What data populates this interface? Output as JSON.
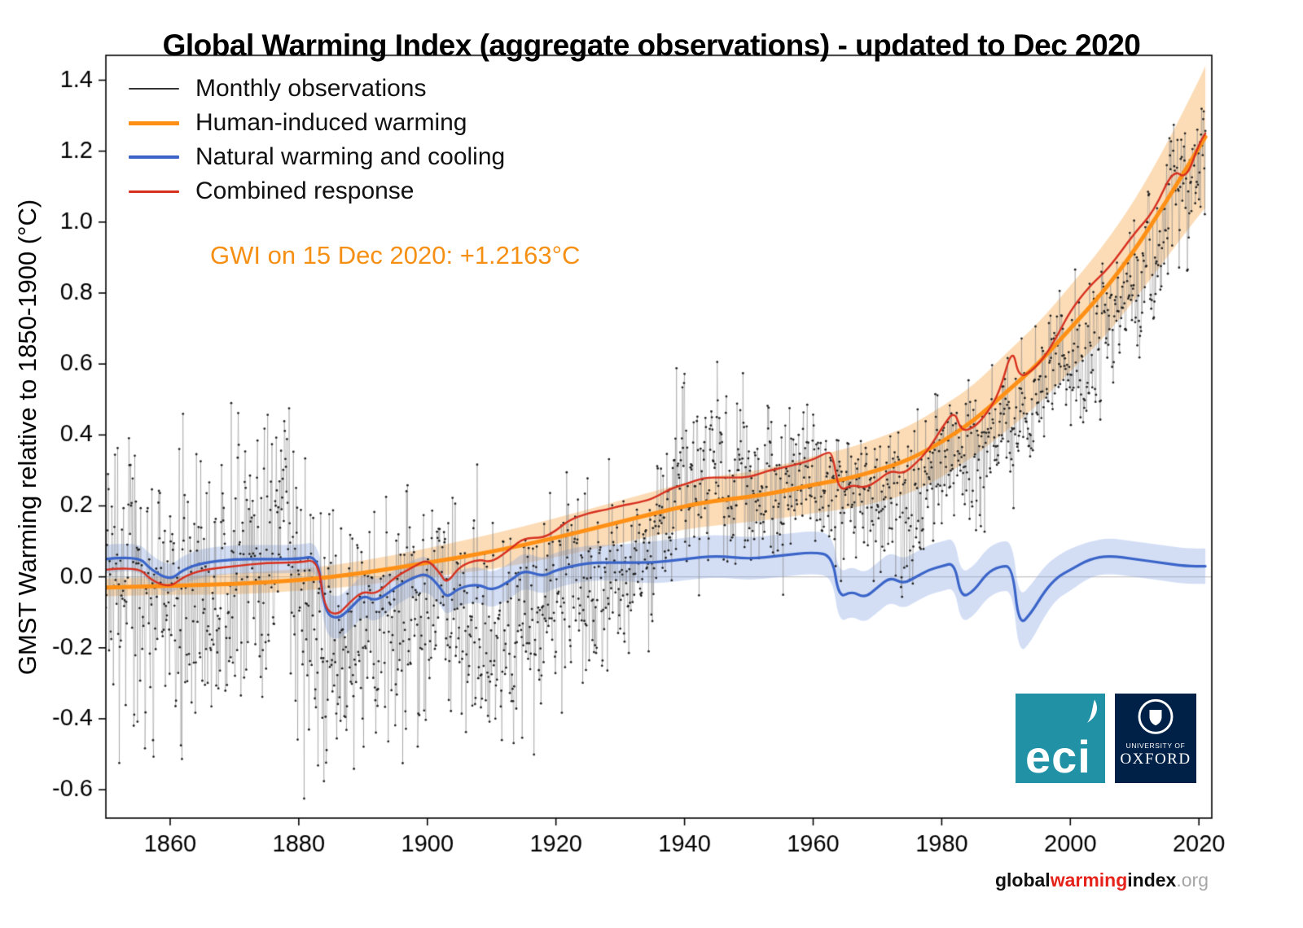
{
  "title": "Global Warming Index (aggregate observations) - updated to Dec 2020",
  "annotation": "GWI on 15 Dec 2020: +1.2163°C",
  "legend": [
    {
      "label": "Monthly observations",
      "color": "#333333"
    },
    {
      "label": "Human-induced warming",
      "color": "#ff9015"
    },
    {
      "label": "Natural warming and cooling",
      "color": "#3a64c8"
    },
    {
      "label": "Combined response",
      "color": "#d7301f"
    }
  ],
  "y_axis": {
    "label": "GMST Warming relative to 1850-1900 (°C)",
    "tick_values": [
      1.4,
      1.2,
      1.0,
      0.8,
      0.6,
      0.4,
      0.2,
      0.0,
      -0.2,
      -0.4,
      -0.6
    ],
    "tick_labels": [
      "1.4",
      "1.2",
      "1.0",
      "0.8",
      "0.6",
      "0.4",
      "0.2",
      "0.0",
      "-0.2",
      "-0.4",
      "-0.6"
    ]
  },
  "x_axis": {
    "tick_values": [
      1860,
      1880,
      1900,
      1920,
      1940,
      1960,
      1980,
      2000,
      2020
    ],
    "tick_labels": [
      "1860",
      "1880",
      "1900",
      "1920",
      "1940",
      "1960",
      "1980",
      "2000",
      "2020"
    ]
  },
  "colors": {
    "accent_orange": "#f59015",
    "footer_red": "#e5231b",
    "eci_teal": "#2191a5",
    "oxford_navy": "#002147",
    "zero_line": "#c4c4c4",
    "obs_dot": "#1c1c1c",
    "obs_line": "#8a8a8a",
    "orange_band": "rgba(247,164,64,0.38)",
    "blue_band": "rgba(130,160,225,0.35)"
  },
  "logos": {
    "eci_text": "eci",
    "oxford_line1": "UNIVERSITY OF",
    "oxford_line2": "OXFORD"
  },
  "footer": {
    "part1": "global",
    "part2": "warming",
    "part3": "index",
    "part4": ".org"
  },
  "chart_data": {
    "type": "line+scatter",
    "title": "Global Warming Index (aggregate observations) - updated to Dec 2020",
    "xlabel": "",
    "ylabel": "GMST Warming relative to 1850-1900 (°C)",
    "xlim": [
      1850,
      2022
    ],
    "ylim": [
      -0.68,
      1.47
    ],
    "grid": false,
    "zero_line": true,
    "legend_position": "top-left inside",
    "gwi_value_label": "+1.2163°C",
    "gwi_value": 1.2163,
    "gwi_date": "15 Dec 2020",
    "series": [
      {
        "name": "Human-induced warming",
        "kind": "line-with-band",
        "color": "#ff9015",
        "x": [
          1850,
          1860,
          1870,
          1880,
          1890,
          1900,
          1910,
          1920,
          1930,
          1940,
          1945,
          1950,
          1955,
          1960,
          1965,
          1970,
          1975,
          1980,
          1985,
          1990,
          1995,
          2000,
          2005,
          2010,
          2015,
          2020,
          2021
        ],
        "y": [
          -0.03,
          -0.025,
          -0.02,
          -0.01,
          0.01,
          0.04,
          0.07,
          0.11,
          0.155,
          0.2,
          0.215,
          0.225,
          0.24,
          0.26,
          0.275,
          0.3,
          0.33,
          0.38,
          0.44,
          0.52,
          0.6,
          0.7,
          0.8,
          0.92,
          1.06,
          1.21,
          1.24
        ],
        "band": [
          0.025,
          0.025,
          0.03,
          0.03,
          0.035,
          0.04,
          0.05,
          0.055,
          0.06,
          0.065,
          0.07,
          0.07,
          0.075,
          0.08,
          0.085,
          0.09,
          0.095,
          0.1,
          0.1,
          0.11,
          0.115,
          0.12,
          0.13,
          0.14,
          0.16,
          0.19,
          0.2
        ]
      },
      {
        "name": "Natural warming and cooling",
        "kind": "line-with-band",
        "color": "#3a64c8",
        "x": [
          1850,
          1855,
          1857,
          1860,
          1862,
          1865,
          1870,
          1875,
          1880,
          1883,
          1884,
          1886,
          1888,
          1890,
          1892,
          1895,
          1898,
          1900,
          1902,
          1903,
          1905,
          1908,
          1910,
          1913,
          1915,
          1918,
          1920,
          1925,
          1930,
          1935,
          1940,
          1945,
          1950,
          1955,
          1960,
          1963,
          1964,
          1966,
          1968,
          1970,
          1972,
          1974,
          1976,
          1978,
          1980,
          1982,
          1983,
          1985,
          1987,
          1989,
          1991,
          1992,
          1994,
          1996,
          1998,
          2000,
          2003,
          2006,
          2010,
          2014,
          2018,
          2021
        ],
        "y": [
          0.05,
          0.06,
          0.02,
          -0.01,
          0.02,
          0.04,
          0.05,
          0.05,
          0.05,
          0.06,
          -0.1,
          -0.12,
          -0.09,
          -0.05,
          -0.07,
          -0.03,
          0.0,
          0.01,
          -0.03,
          -0.06,
          -0.03,
          -0.02,
          -0.04,
          -0.01,
          0.02,
          0.0,
          0.02,
          0.04,
          0.04,
          0.04,
          0.05,
          0.06,
          0.05,
          0.06,
          0.07,
          0.06,
          -0.06,
          -0.04,
          -0.06,
          -0.03,
          0.0,
          -0.02,
          0.0,
          0.02,
          0.03,
          0.04,
          -0.06,
          -0.04,
          0.01,
          0.03,
          0.03,
          -0.14,
          -0.1,
          -0.04,
          0.0,
          0.02,
          0.05,
          0.06,
          0.05,
          0.04,
          0.03,
          0.03
        ],
        "band": [
          0.04,
          0.04,
          0.04,
          0.04,
          0.04,
          0.04,
          0.04,
          0.04,
          0.04,
          0.04,
          0.06,
          0.06,
          0.06,
          0.06,
          0.06,
          0.05,
          0.05,
          0.05,
          0.05,
          0.05,
          0.05,
          0.05,
          0.05,
          0.05,
          0.05,
          0.05,
          0.05,
          0.05,
          0.05,
          0.06,
          0.06,
          0.06,
          0.06,
          0.06,
          0.06,
          0.06,
          0.07,
          0.07,
          0.07,
          0.07,
          0.07,
          0.07,
          0.07,
          0.07,
          0.07,
          0.07,
          0.07,
          0.07,
          0.07,
          0.07,
          0.07,
          0.08,
          0.08,
          0.07,
          0.06,
          0.06,
          0.05,
          0.05,
          0.05,
          0.05,
          0.05,
          0.05
        ]
      },
      {
        "name": "Combined response",
        "kind": "line",
        "color": "#d7301f",
        "x": [
          1850,
          1855,
          1857,
          1860,
          1862,
          1865,
          1870,
          1875,
          1880,
          1883,
          1884,
          1886,
          1888,
          1890,
          1892,
          1895,
          1898,
          1900,
          1902,
          1903,
          1905,
          1908,
          1910,
          1913,
          1915,
          1918,
          1920,
          1922,
          1925,
          1928,
          1930,
          1933,
          1935,
          1938,
          1940,
          1943,
          1946,
          1950,
          1953,
          1956,
          1960,
          1962,
          1963,
          1964,
          1966,
          1968,
          1970,
          1972,
          1974,
          1976,
          1978,
          1980,
          1982,
          1983,
          1985,
          1987,
          1989,
          1991,
          1992,
          1994,
          1996,
          1998,
          2000,
          2003,
          2006,
          2010,
          2013,
          2016,
          2018,
          2020,
          2021
        ],
        "y": [
          0.02,
          0.03,
          -0.01,
          -0.03,
          0.0,
          0.02,
          0.03,
          0.04,
          0.04,
          0.05,
          -0.09,
          -0.11,
          -0.07,
          -0.04,
          -0.05,
          0.0,
          0.03,
          0.05,
          0.01,
          -0.02,
          0.03,
          0.05,
          0.04,
          0.08,
          0.11,
          0.11,
          0.13,
          0.16,
          0.18,
          0.19,
          0.2,
          0.21,
          0.22,
          0.25,
          0.26,
          0.28,
          0.28,
          0.28,
          0.3,
          0.31,
          0.33,
          0.35,
          0.35,
          0.24,
          0.26,
          0.25,
          0.27,
          0.3,
          0.29,
          0.32,
          0.36,
          0.42,
          0.47,
          0.41,
          0.42,
          0.46,
          0.52,
          0.65,
          0.56,
          0.58,
          0.62,
          0.68,
          0.75,
          0.82,
          0.87,
          0.97,
          1.03,
          1.15,
          1.12,
          1.22,
          1.25
        ]
      },
      {
        "name": "Monthly observations",
        "kind": "scatter-monthly",
        "color": "#1c1c1c",
        "start_year": 1850,
        "end_year": 2021,
        "points_per_year": 12,
        "baseline_x": [
          1850,
          1855,
          1860,
          1865,
          1870,
          1875,
          1877,
          1878,
          1880,
          1885,
          1890,
          1895,
          1900,
          1905,
          1910,
          1915,
          1920,
          1925,
          1930,
          1935,
          1940,
          1945,
          1950,
          1955,
          1960,
          1965,
          1970,
          1975,
          1980,
          1985,
          1990,
          1995,
          1998,
          2000,
          2005,
          2010,
          2014,
          2016,
          2018,
          2020,
          2021
        ],
        "baseline_y": [
          0.02,
          0.0,
          -0.08,
          -0.05,
          0.0,
          0.0,
          0.15,
          0.2,
          -0.05,
          -0.18,
          -0.15,
          -0.12,
          -0.05,
          -0.12,
          -0.22,
          -0.08,
          -0.05,
          -0.05,
          0.0,
          0.08,
          0.3,
          0.28,
          0.22,
          0.25,
          0.28,
          0.18,
          0.22,
          0.2,
          0.32,
          0.32,
          0.45,
          0.5,
          0.6,
          0.55,
          0.72,
          0.85,
          0.9,
          1.15,
          1.05,
          1.15,
          1.2
        ],
        "noise_sd": [
          0.17,
          0.17,
          0.18,
          0.17,
          0.16,
          0.16,
          0.16,
          0.16,
          0.16,
          0.16,
          0.15,
          0.15,
          0.14,
          0.13,
          0.13,
          0.12,
          0.12,
          0.11,
          0.1,
          0.1,
          0.11,
          0.12,
          0.1,
          0.1,
          0.09,
          0.09,
          0.09,
          0.09,
          0.09,
          0.09,
          0.08,
          0.08,
          0.08,
          0.08,
          0.08,
          0.08,
          0.08,
          0.08,
          0.08,
          0.09,
          0.09
        ],
        "noise_seed": 20,
        "noise_ar": 0.25
      }
    ]
  }
}
